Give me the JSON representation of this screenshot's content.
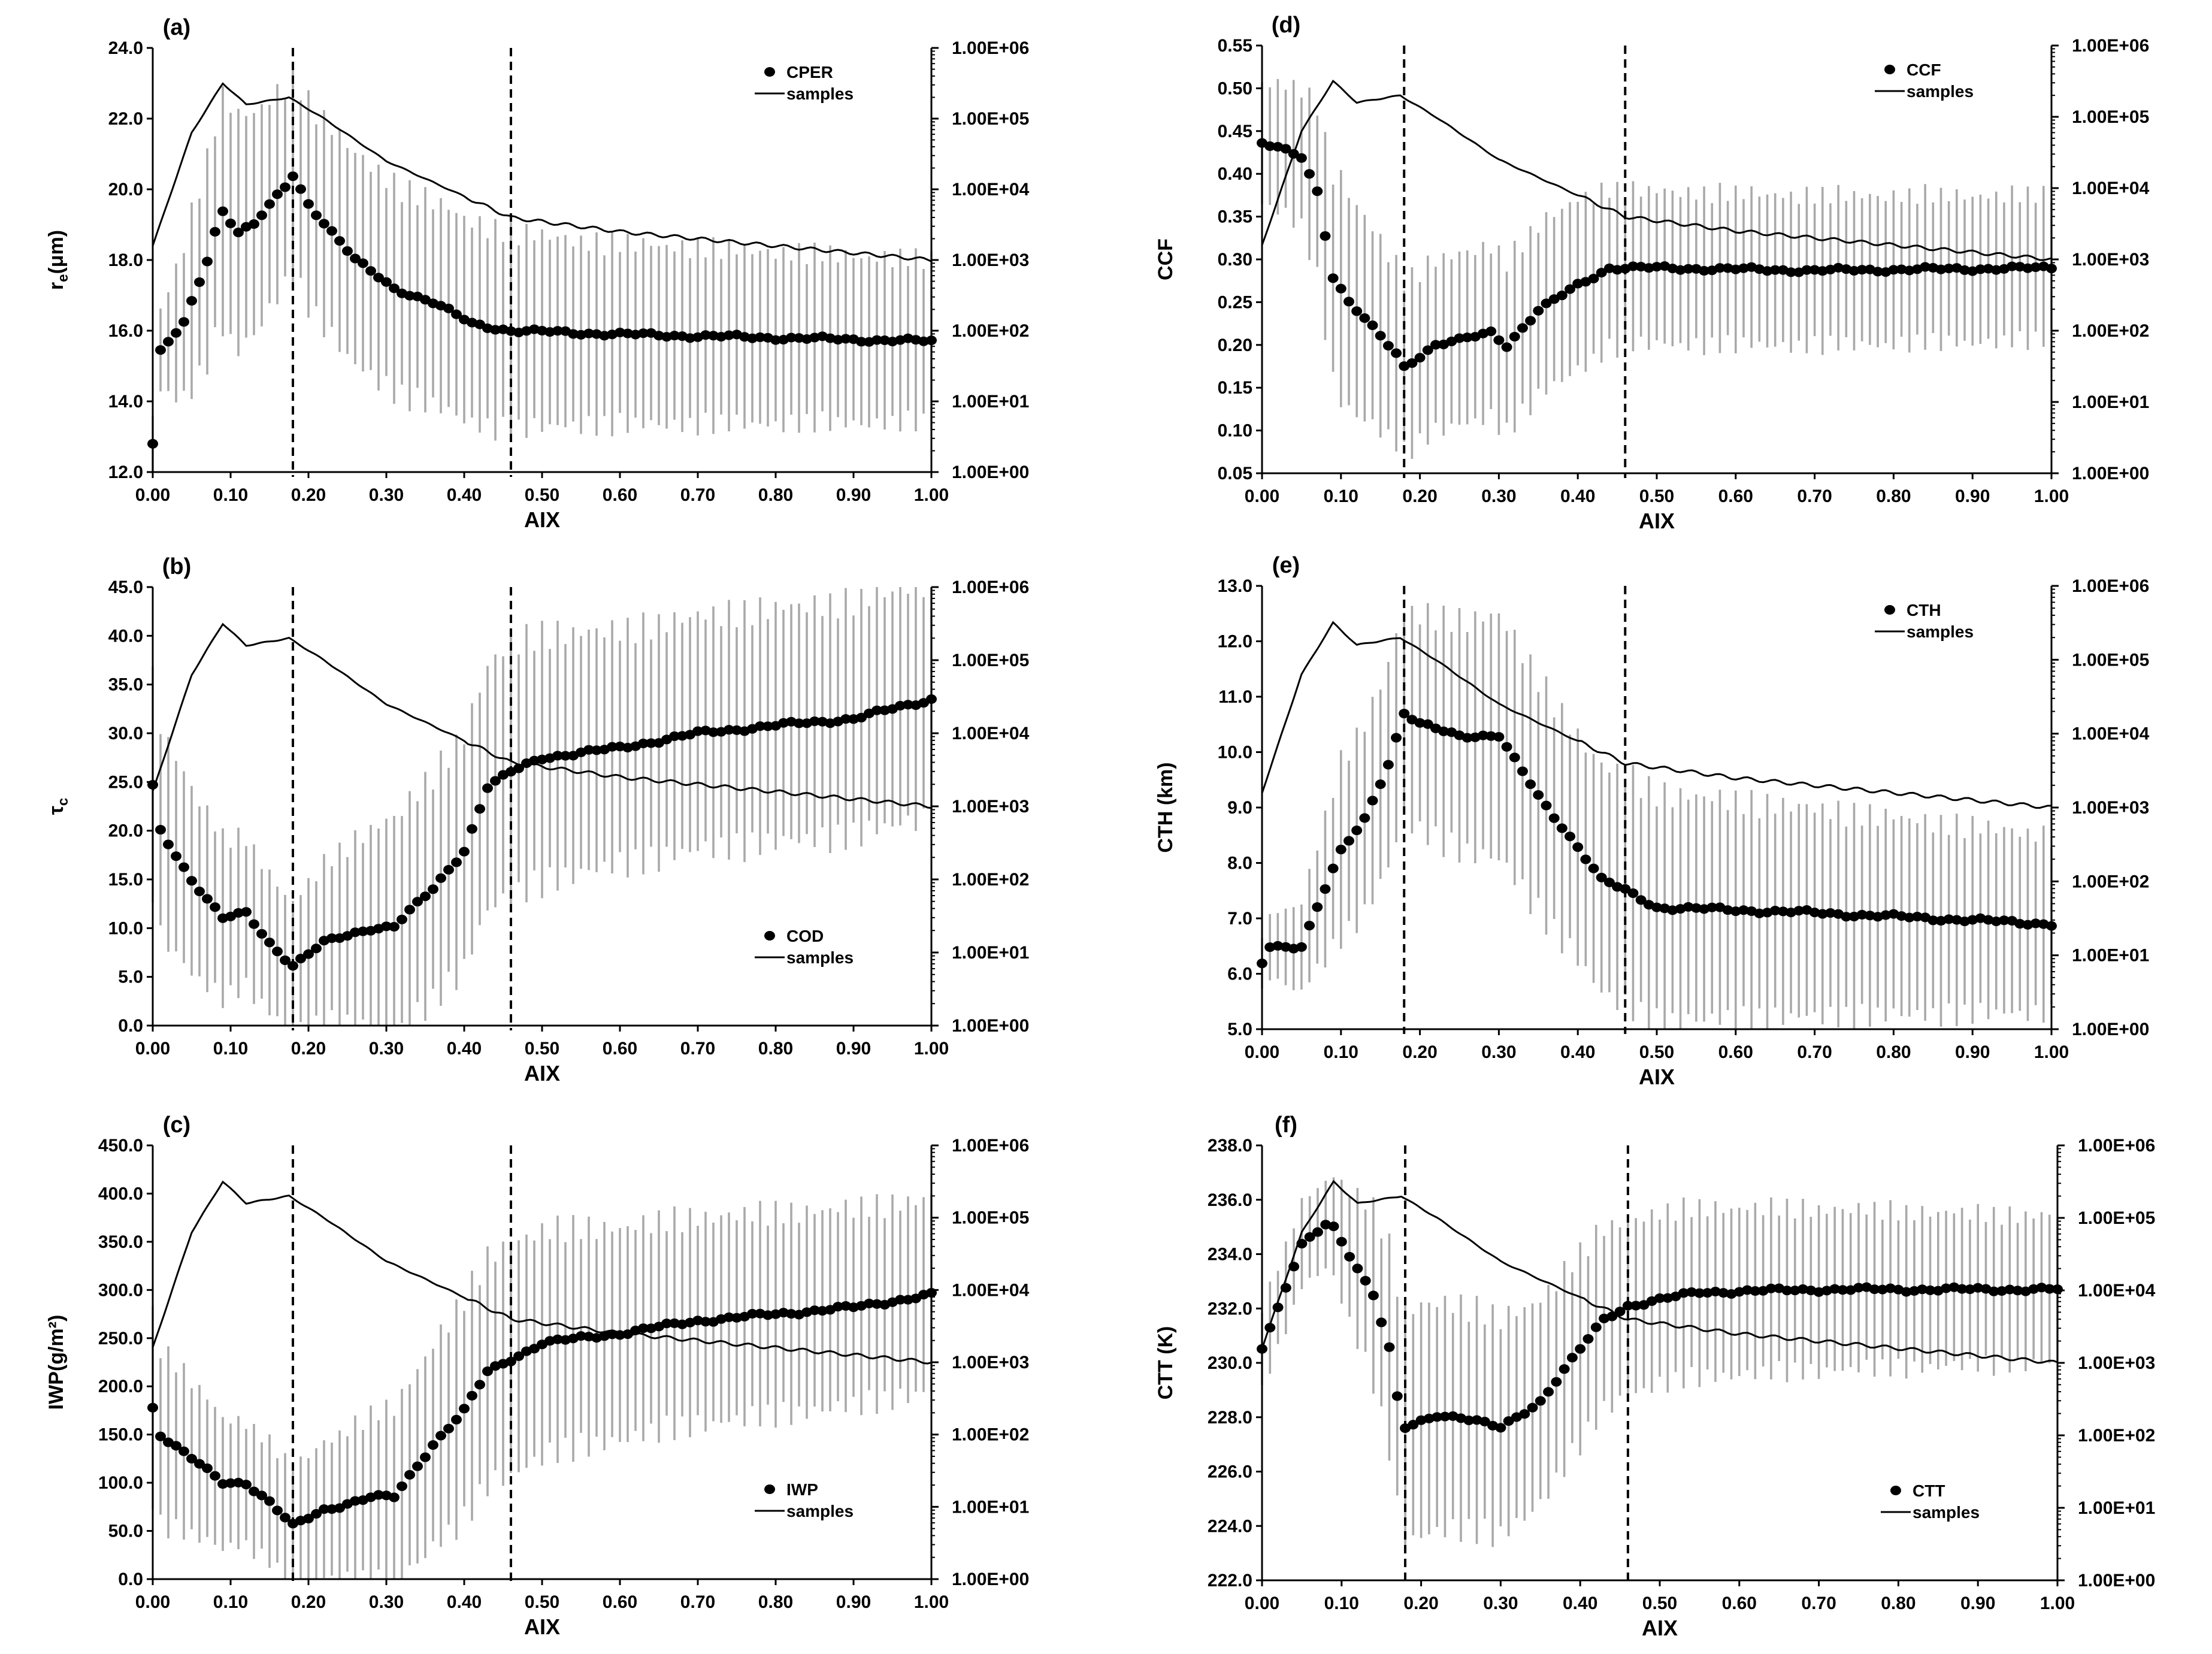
{
  "chart_data": [
    {
      "panel": "(a)",
      "type": "scatter",
      "ylabel": "r_e(μm)",
      "ylim": [
        12.0,
        24.0
      ],
      "ystep": 2.0,
      "ydec": 1,
      "yticks": [
        "12.0",
        "14.0",
        "16.0",
        "18.0",
        "20.0",
        "22.0",
        "24.0"
      ],
      "xlabel": "AIX",
      "xlim": [
        0.0,
        1.0
      ],
      "xticks": [
        "0.00",
        "0.10",
        "0.20",
        "0.30",
        "0.40",
        "0.50",
        "0.60",
        "0.70",
        "0.80",
        "0.90",
        "1.00"
      ],
      "y2ticks": [
        "1.00E+00",
        "1.00E+01",
        "1.00E+02",
        "1.00E+03",
        "1.00E+04",
        "1.00E+05",
        "1.00E+06"
      ],
      "vlines": [
        0.18,
        0.46
      ],
      "legend": {
        "points": "CPER",
        "line": "samples",
        "position": "top-right"
      },
      "mean_knots": [
        [
          0.0,
          12.8
        ],
        [
          0.01,
          15.4
        ],
        [
          0.04,
          16.2
        ],
        [
          0.07,
          18.0
        ],
        [
          0.085,
          19.2
        ],
        [
          0.09,
          19.4
        ],
        [
          0.11,
          18.8
        ],
        [
          0.13,
          19.0
        ],
        [
          0.16,
          19.8
        ],
        [
          0.175,
          20.2
        ],
        [
          0.18,
          20.4
        ],
        [
          0.2,
          19.6
        ],
        [
          0.23,
          18.8
        ],
        [
          0.26,
          18.0
        ],
        [
          0.31,
          17.2
        ],
        [
          0.36,
          16.8
        ],
        [
          0.41,
          16.2
        ],
        [
          0.46,
          16.0
        ],
        [
          0.6,
          15.9
        ],
        [
          1.0,
          15.7
        ]
      ],
      "err_knots": [
        [
          0.0,
          0.8
        ],
        [
          0.05,
          2.5
        ],
        [
          0.1,
          3.4
        ],
        [
          0.17,
          2.8
        ],
        [
          0.25,
          3.0
        ],
        [
          0.35,
          2.9
        ],
        [
          0.46,
          2.8
        ],
        [
          0.55,
          2.6
        ],
        [
          1.0,
          2.3
        ]
      ],
      "samples_log_knots": [
        [
          0.0,
          3.2
        ],
        [
          0.05,
          4.8
        ],
        [
          0.09,
          5.5
        ],
        [
          0.12,
          5.2
        ],
        [
          0.175,
          5.3
        ],
        [
          0.22,
          5.0
        ],
        [
          0.3,
          4.4
        ],
        [
          0.46,
          3.6
        ],
        [
          0.6,
          3.4
        ],
        [
          0.8,
          3.2
        ],
        [
          1.0,
          3.0
        ]
      ]
    },
    {
      "panel": "(b)",
      "type": "scatter",
      "ylabel": "τc",
      "ylim": [
        0.0,
        45.0
      ],
      "ystep": 5.0,
      "ydec": 1,
      "yticks": [
        "0.0",
        "5.0",
        "10.0",
        "15.0",
        "20.0",
        "25.0",
        "30.0",
        "35.0",
        "40.0",
        "45.0"
      ],
      "xlabel": "AIX",
      "xlim": [
        0.0,
        1.0
      ],
      "xticks": [
        "0.00",
        "0.10",
        "0.20",
        "0.30",
        "0.40",
        "0.50",
        "0.60",
        "0.70",
        "0.80",
        "0.90",
        "1.00"
      ],
      "y2ticks": [
        "1.00E+00",
        "1.00E+01",
        "1.00E+02",
        "1.00E+03",
        "1.00E+04",
        "1.00E+05",
        "1.00E+06"
      ],
      "vlines": [
        0.18,
        0.46
      ],
      "legend": {
        "points": "COD",
        "line": "samples",
        "position": "bottom-right"
      },
      "mean_knots": [
        [
          0.0,
          24.5
        ],
        [
          0.01,
          20.0
        ],
        [
          0.05,
          15.0
        ],
        [
          0.09,
          11.0
        ],
        [
          0.12,
          11.5
        ],
        [
          0.15,
          8.5
        ],
        [
          0.18,
          6.2
        ],
        [
          0.22,
          8.5
        ],
        [
          0.28,
          10.0
        ],
        [
          0.31,
          10.2
        ],
        [
          0.36,
          14.0
        ],
        [
          0.4,
          18.0
        ],
        [
          0.43,
          24.5
        ],
        [
          0.46,
          26.0
        ],
        [
          0.5,
          27.5
        ],
        [
          0.6,
          28.5
        ],
        [
          0.7,
          30.0
        ],
        [
          0.8,
          30.8
        ],
        [
          0.9,
          31.5
        ],
        [
          1.0,
          33.5
        ]
      ],
      "err_knots": [
        [
          0.0,
          11.0
        ],
        [
          0.1,
          8.0
        ],
        [
          0.18,
          6.5
        ],
        [
          0.3,
          11.0
        ],
        [
          0.4,
          12.0
        ],
        [
          0.46,
          13.0
        ],
        [
          0.6,
          12.0
        ],
        [
          0.8,
          12.0
        ],
        [
          1.0,
          12.0
        ]
      ],
      "samples_log_knots": [
        [
          0.0,
          3.2
        ],
        [
          0.05,
          4.8
        ],
        [
          0.09,
          5.5
        ],
        [
          0.12,
          5.2
        ],
        [
          0.175,
          5.3
        ],
        [
          0.22,
          5.0
        ],
        [
          0.3,
          4.4
        ],
        [
          0.46,
          3.6
        ],
        [
          0.6,
          3.4
        ],
        [
          0.8,
          3.2
        ],
        [
          1.0,
          3.0
        ]
      ]
    },
    {
      "panel": "(c)",
      "type": "scatter",
      "ylabel": "IWP(g/m²)",
      "ylim": [
        0.0,
        450.0
      ],
      "ystep": 50.0,
      "ydec": 1,
      "yticks": [
        "0.0",
        "50.0",
        "100.0",
        "150.0",
        "200.0",
        "250.0",
        "300.0",
        "350.0",
        "400.0",
        "450.0"
      ],
      "xlabel": "AIX",
      "xlim": [
        0.0,
        1.0
      ],
      "xticks": [
        "0.00",
        "0.10",
        "0.20",
        "0.30",
        "0.40",
        "0.50",
        "0.60",
        "0.70",
        "0.80",
        "0.90",
        "1.00"
      ],
      "y2ticks": [
        "1.00E+00",
        "1.00E+01",
        "1.00E+02",
        "1.00E+03",
        "1.00E+04",
        "1.00E+05",
        "1.00E+06"
      ],
      "vlines": [
        0.18,
        0.46
      ],
      "legend": {
        "points": "IWP",
        "line": "samples",
        "position": "bottom-right"
      },
      "mean_knots": [
        [
          0.0,
          178
        ],
        [
          0.01,
          150
        ],
        [
          0.05,
          125
        ],
        [
          0.09,
          100
        ],
        [
          0.12,
          100
        ],
        [
          0.15,
          80
        ],
        [
          0.18,
          55
        ],
        [
          0.22,
          72
        ],
        [
          0.28,
          85
        ],
        [
          0.31,
          85
        ],
        [
          0.36,
          140
        ],
        [
          0.4,
          175
        ],
        [
          0.43,
          215
        ],
        [
          0.46,
          228
        ],
        [
          0.5,
          245
        ],
        [
          0.6,
          255
        ],
        [
          0.7,
          268
        ],
        [
          0.8,
          275
        ],
        [
          0.9,
          282
        ],
        [
          1.0,
          295
        ]
      ],
      "err_knots": [
        [
          0.0,
          95
        ],
        [
          0.1,
          65
        ],
        [
          0.18,
          60
        ],
        [
          0.3,
          90
        ],
        [
          0.4,
          115
        ],
        [
          0.46,
          120
        ],
        [
          0.6,
          110
        ],
        [
          0.8,
          105
        ],
        [
          1.0,
          100
        ]
      ],
      "samples_log_knots": [
        [
          0.0,
          3.2
        ],
        [
          0.05,
          4.8
        ],
        [
          0.09,
          5.5
        ],
        [
          0.12,
          5.2
        ],
        [
          0.175,
          5.3
        ],
        [
          0.22,
          5.0
        ],
        [
          0.3,
          4.4
        ],
        [
          0.46,
          3.6
        ],
        [
          0.6,
          3.4
        ],
        [
          0.8,
          3.2
        ],
        [
          1.0,
          3.0
        ]
      ]
    },
    {
      "panel": "(d)",
      "type": "scatter",
      "ylabel": "CCF",
      "ylim": [
        0.05,
        0.55
      ],
      "ystep": 0.05,
      "ydec": 2,
      "yticks": [
        "0.05",
        "0.10",
        "0.15",
        "0.20",
        "0.25",
        "0.30",
        "0.35",
        "0.40",
        "0.45",
        "0.50",
        "0.55"
      ],
      "xlabel": "AIX",
      "xlim": [
        0.0,
        1.0
      ],
      "xticks": [
        "0.00",
        "0.10",
        "0.20",
        "0.30",
        "0.40",
        "0.50",
        "0.60",
        "0.70",
        "0.80",
        "0.90",
        "1.00"
      ],
      "y2ticks": [
        "1.00E+00",
        "1.00E+01",
        "1.00E+02",
        "1.00E+03",
        "1.00E+04",
        "1.00E+05",
        "1.00E+06"
      ],
      "vlines": [
        0.18,
        0.46
      ],
      "legend": {
        "points": "CCF",
        "line": "samples",
        "position": "top-right"
      },
      "mean_knots": [
        [
          0.0,
          0.435
        ],
        [
          0.02,
          0.43
        ],
        [
          0.05,
          0.42
        ],
        [
          0.07,
          0.38
        ],
        [
          0.09,
          0.28
        ],
        [
          0.11,
          0.25
        ],
        [
          0.14,
          0.22
        ],
        [
          0.17,
          0.19
        ],
        [
          0.18,
          0.175
        ],
        [
          0.22,
          0.2
        ],
        [
          0.25,
          0.205
        ],
        [
          0.29,
          0.215
        ],
        [
          0.31,
          0.2
        ],
        [
          0.35,
          0.24
        ],
        [
          0.4,
          0.27
        ],
        [
          0.44,
          0.29
        ],
        [
          0.5,
          0.29
        ],
        [
          0.7,
          0.287
        ],
        [
          1.0,
          0.29
        ]
      ],
      "err_knots": [
        [
          0.0,
          0.07
        ],
        [
          0.05,
          0.08
        ],
        [
          0.1,
          0.13
        ],
        [
          0.18,
          0.1
        ],
        [
          0.3,
          0.1
        ],
        [
          0.4,
          0.1
        ],
        [
          0.46,
          0.09
        ],
        [
          1.0,
          0.085
        ]
      ],
      "samples_log_knots": [
        [
          0.0,
          3.2
        ],
        [
          0.05,
          4.8
        ],
        [
          0.09,
          5.5
        ],
        [
          0.12,
          5.2
        ],
        [
          0.175,
          5.3
        ],
        [
          0.22,
          5.0
        ],
        [
          0.3,
          4.4
        ],
        [
          0.46,
          3.6
        ],
        [
          0.6,
          3.4
        ],
        [
          0.8,
          3.2
        ],
        [
          1.0,
          3.0
        ]
      ]
    },
    {
      "panel": "(e)",
      "type": "scatter",
      "ylabel": "CTH (km)",
      "ylim": [
        5.0,
        13.0
      ],
      "ystep": 1.0,
      "ydec": 1,
      "yticks": [
        "5.0",
        "6.0",
        "7.0",
        "8.0",
        "9.0",
        "10.0",
        "11.0",
        "12.0",
        "13.0"
      ],
      "xlabel": "AIX",
      "xlim": [
        0.0,
        1.0
      ],
      "xticks": [
        "0.00",
        "0.10",
        "0.20",
        "0.30",
        "0.40",
        "0.50",
        "0.60",
        "0.70",
        "0.80",
        "0.90",
        "1.00"
      ],
      "y2ticks": [
        "1.00E+00",
        "1.00E+01",
        "1.00E+02",
        "1.00E+03",
        "1.00E+04",
        "1.00E+05",
        "1.00E+06"
      ],
      "vlines": [
        0.18,
        0.46
      ],
      "legend": {
        "points": "CTH",
        "line": "samples",
        "position": "top-right"
      },
      "mean_knots": [
        [
          0.0,
          6.2
        ],
        [
          0.01,
          6.5
        ],
        [
          0.05,
          6.5
        ],
        [
          0.07,
          7.2
        ],
        [
          0.1,
          8.2
        ],
        [
          0.13,
          8.8
        ],
        [
          0.16,
          9.8
        ],
        [
          0.18,
          10.7
        ],
        [
          0.2,
          10.5
        ],
        [
          0.25,
          10.3
        ],
        [
          0.3,
          10.3
        ],
        [
          0.35,
          9.2
        ],
        [
          0.4,
          8.3
        ],
        [
          0.43,
          7.7
        ],
        [
          0.46,
          7.5
        ],
        [
          0.5,
          7.2
        ],
        [
          0.7,
          7.1
        ],
        [
          0.85,
          7.0
        ],
        [
          1.0,
          6.9
        ]
      ],
      "err_knots": [
        [
          0.0,
          0.5
        ],
        [
          0.05,
          0.8
        ],
        [
          0.1,
          1.6
        ],
        [
          0.18,
          1.9
        ],
        [
          0.3,
          2.2
        ],
        [
          0.4,
          2.0
        ],
        [
          0.46,
          2.1
        ],
        [
          1.0,
          1.6
        ]
      ],
      "samples_log_knots": [
        [
          0.0,
          3.2
        ],
        [
          0.05,
          4.8
        ],
        [
          0.09,
          5.5
        ],
        [
          0.12,
          5.2
        ],
        [
          0.175,
          5.3
        ],
        [
          0.22,
          5.0
        ],
        [
          0.3,
          4.4
        ],
        [
          0.46,
          3.6
        ],
        [
          0.6,
          3.4
        ],
        [
          0.8,
          3.2
        ],
        [
          1.0,
          3.0
        ]
      ]
    },
    {
      "panel": "(f)",
      "type": "scatter",
      "ylabel": "CTT (K)",
      "ylim": [
        222.0,
        238.0
      ],
      "ystep": 2.0,
      "ydec": 1,
      "yticks": [
        "222.0",
        "224.0",
        "226.0",
        "228.0",
        "230.0",
        "232.0",
        "234.0",
        "236.0",
        "238.0"
      ],
      "xlabel": "AIX",
      "xlim": [
        0.0,
        1.0
      ],
      "xticks": [
        "0.00",
        "0.10",
        "0.20",
        "0.30",
        "0.40",
        "0.50",
        "0.60",
        "0.70",
        "0.80",
        "0.90",
        "1.00"
      ],
      "y2ticks": [
        "1.00E+00",
        "1.00E+01",
        "1.00E+02",
        "1.00E+03",
        "1.00E+04",
        "1.00E+05",
        "1.00E+06"
      ],
      "vlines": [
        0.18,
        0.46
      ],
      "legend": {
        "points": "CTT",
        "line": "samples",
        "position": "bottom-right"
      },
      "mean_knots": [
        [
          0.0,
          230.6
        ],
        [
          0.02,
          232.0
        ],
        [
          0.05,
          234.3
        ],
        [
          0.08,
          235.1
        ],
        [
          0.09,
          235.0
        ],
        [
          0.11,
          234.0
        ],
        [
          0.14,
          232.5
        ],
        [
          0.16,
          230.5
        ],
        [
          0.17,
          228.7
        ],
        [
          0.18,
          227.6
        ],
        [
          0.22,
          228.1
        ],
        [
          0.25,
          228.0
        ],
        [
          0.3,
          227.6
        ],
        [
          0.35,
          228.6
        ],
        [
          0.4,
          230.5
        ],
        [
          0.43,
          231.6
        ],
        [
          0.46,
          232.1
        ],
        [
          0.55,
          232.6
        ],
        [
          0.7,
          232.7
        ],
        [
          1.0,
          232.7
        ]
      ],
      "err_knots": [
        [
          0.0,
          1.5
        ],
        [
          0.08,
          1.6
        ],
        [
          0.15,
          3.5
        ],
        [
          0.18,
          4.3
        ],
        [
          0.3,
          4.0
        ],
        [
          0.4,
          3.5
        ],
        [
          0.46,
          3.2
        ],
        [
          1.0,
          2.7
        ]
      ],
      "samples_log_knots": [
        [
          0.0,
          3.2
        ],
        [
          0.05,
          4.8
        ],
        [
          0.09,
          5.5
        ],
        [
          0.12,
          5.2
        ],
        [
          0.175,
          5.3
        ],
        [
          0.22,
          5.0
        ],
        [
          0.3,
          4.4
        ],
        [
          0.46,
          3.6
        ],
        [
          0.6,
          3.4
        ],
        [
          0.8,
          3.2
        ],
        [
          1.0,
          3.0
        ]
      ]
    }
  ]
}
